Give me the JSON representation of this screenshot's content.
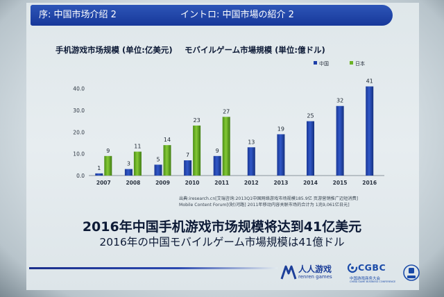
{
  "header": {
    "left": "序: 中国市场介绍 2",
    "right": "イントロ: 中国市場の紹介 2"
  },
  "chart_data": {
    "type": "bar",
    "title_cn": "手机游戏市场规模 (单位:亿美元)",
    "title_jp": "モバイルゲーム市場規模 (単位:億ドル)",
    "categories": [
      "2007",
      "2008",
      "2009",
      "2010",
      "2011",
      "2012",
      "2013",
      "2014",
      "2015",
      "2016"
    ],
    "series": [
      {
        "name": "中国",
        "color": "#1d3fa8",
        "values": [
          1,
          3,
          5,
          7,
          9,
          13,
          19,
          25,
          32,
          41
        ]
      },
      {
        "name": "日本",
        "color": "#6cb326",
        "values": [
          9,
          11,
          14,
          23,
          27,
          null,
          null,
          null,
          null,
          null
        ]
      }
    ],
    "ylim": [
      0,
      45
    ],
    "yticks": [
      "0.0",
      "10.0",
      "20.0",
      "30.0",
      "40.0"
    ],
    "ytick_values": [
      0,
      10,
      20,
      30,
      40
    ],
    "grid": false,
    "legend_position": "top-right"
  },
  "source": {
    "line1": "出典:iresearch.cn[艾瑞咨询:2013Q1中国网络游戏市场规模185.9亿 页游营销推广迈短消费]",
    "line2": "Mobile Content Forum[(財)河路] 2011年移动内容关联市场的合计为 1兆9,061亿日元]"
  },
  "headline": {
    "cn": "2016年中国手机游戏市场规模将达到41亿美元",
    "jp": "2016年の中国モバイルゲーム市場規模は41億ドル"
  },
  "logos": {
    "renren_cn": "人人游戏",
    "renren_en": "renren games",
    "cgbc": "CGBC",
    "cgbc_cn": "中国游戏商务大会",
    "cgbc_en": "CHINA GAME BUSINESS CONFERENCE"
  }
}
